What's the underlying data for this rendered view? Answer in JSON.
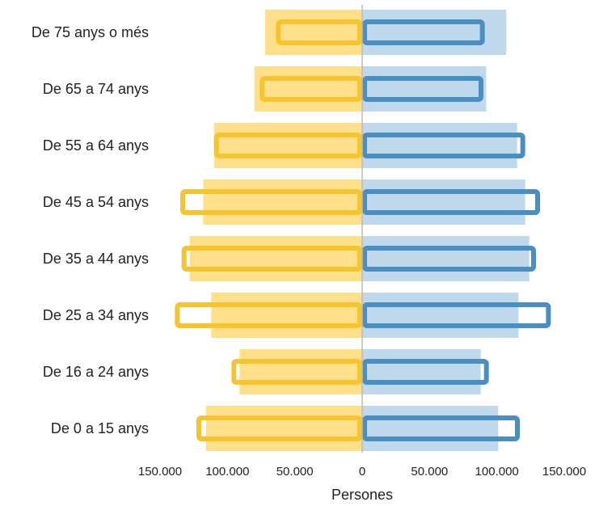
{
  "chart_data": {
    "type": "bar",
    "orientation": "horizontal",
    "layout": "population-pyramid",
    "categories": [
      "De 75 anys o més",
      "De 65 a 74 anys",
      "De 55 a 64 anys",
      "De 45 a 54 anys",
      "De 35 a 44 anys",
      "De 25 a 34 anys",
      "De 16 a 24 anys",
      "De 0 a 15 anys"
    ],
    "series": [
      {
        "side": "left",
        "style": "filled",
        "color": "#FFE08A",
        "values": [
          72000,
          80000,
          110000,
          118000,
          128000,
          112000,
          91000,
          116000
        ]
      },
      {
        "side": "left",
        "style": "outline",
        "color": "#F5C431",
        "values": [
          64000,
          76000,
          110000,
          135000,
          134000,
          139000,
          97000,
          123000
        ]
      },
      {
        "side": "right",
        "style": "filled",
        "color": "#BFD8EC",
        "values": [
          107000,
          92000,
          115000,
          121000,
          124000,
          116000,
          88000,
          101000
        ]
      },
      {
        "side": "right",
        "style": "outline",
        "color": "#4A8EC2",
        "values": [
          91000,
          90000,
          121000,
          132000,
          129000,
          140000,
          94000,
          117000
        ]
      }
    ],
    "xlabel": "Persones",
    "xlim": [
      -150000,
      150000
    ],
    "xticks": [
      {
        "value": -150000,
        "label": "150.000"
      },
      {
        "value": -100000,
        "label": "100.000"
      },
      {
        "value": -50000,
        "label": "50.000"
      },
      {
        "value": 0,
        "label": "0"
      },
      {
        "value": 50000,
        "label": "50.000"
      },
      {
        "value": 100000,
        "label": "100.000"
      },
      {
        "value": 150000,
        "label": "150.000"
      }
    ],
    "center_line_color": "#BBBBBB",
    "grid": false,
    "legend": "none"
  }
}
